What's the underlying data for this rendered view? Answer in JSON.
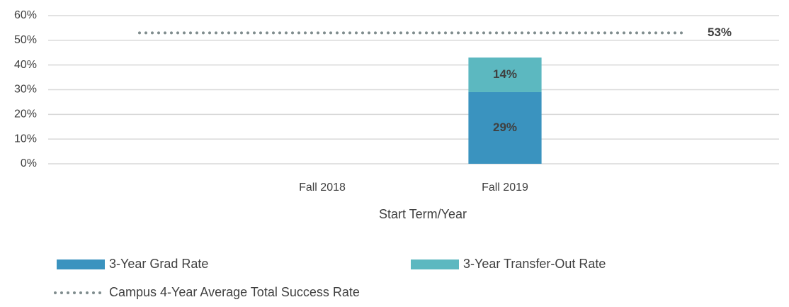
{
  "chart_data": {
    "type": "bar",
    "x_label": "Start Term/Year",
    "categories": [
      null,
      "Fall 2018",
      "Fall 2019",
      null
    ],
    "stacked": true,
    "series": [
      {
        "name": "3-Year Grad Rate",
        "type": "bar",
        "color": "#3a93bf",
        "values": [
          null,
          null,
          29,
          null
        ],
        "value_labels": [
          null,
          null,
          "29%",
          null
        ]
      },
      {
        "name": "3-Year Transfer-Out Rate",
        "type": "bar",
        "color": "#5cb8c0",
        "values": [
          null,
          null,
          14,
          null
        ],
        "value_labels": [
          null,
          null,
          "14%",
          null
        ]
      },
      {
        "name": "Campus 4-Year Average Total Success Rate",
        "type": "line",
        "style": "dotted",
        "color": "#7f8c8d",
        "values": [
          53,
          53,
          53,
          53
        ],
        "value_labels": [
          null,
          null,
          null,
          "53%"
        ]
      }
    ],
    "ylim": [
      0,
      60
    ],
    "yticks": [
      {
        "value": 0,
        "label": "0%"
      },
      {
        "value": 10,
        "label": "10%"
      },
      {
        "value": 20,
        "label": "20%"
      },
      {
        "value": 30,
        "label": "30%"
      },
      {
        "value": 40,
        "label": "40%"
      },
      {
        "value": 50,
        "label": "50%"
      },
      {
        "value": 60,
        "label": "60%"
      }
    ],
    "grid": true,
    "legend": "bottom"
  }
}
